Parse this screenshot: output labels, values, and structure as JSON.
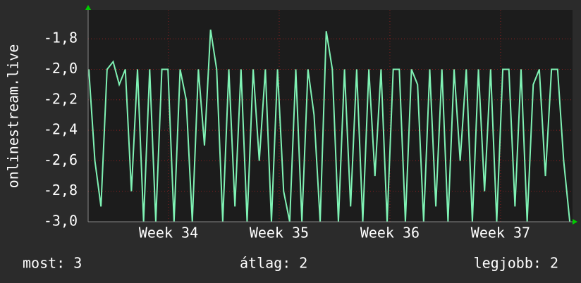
{
  "chart_data": {
    "type": "line",
    "ylabel": "onlinestream.live",
    "x": [
      33.28,
      33.335,
      33.39,
      33.445,
      33.5,
      33.555,
      33.61,
      33.665,
      33.72,
      33.775,
      33.83,
      33.885,
      33.94,
      33.995,
      34.05,
      34.105,
      34.16,
      34.215,
      34.27,
      34.325,
      34.38,
      34.435,
      34.49,
      34.545,
      34.6,
      34.655,
      34.71,
      34.765,
      34.82,
      34.875,
      34.93,
      34.985,
      35.04,
      35.095,
      35.15,
      35.205,
      35.26,
      35.315,
      35.37,
      35.425,
      35.48,
      35.535,
      35.59,
      35.645,
      35.7,
      35.755,
      35.81,
      35.865,
      35.92,
      35.975,
      36.03,
      36.085,
      36.14,
      36.195,
      36.25,
      36.305,
      36.36,
      36.415,
      36.47,
      36.525,
      36.58,
      36.635,
      36.69,
      36.745,
      36.8,
      36.855,
      36.91,
      36.965,
      37.02,
      37.075,
      37.13,
      37.185,
      37.24,
      37.295,
      37.35,
      37.405,
      37.46,
      37.515,
      37.57,
      37.625
    ],
    "values": [
      -2.0,
      -2.6,
      -2.9,
      -2.0,
      -1.95,
      -2.1,
      -2.0,
      -2.8,
      -2.0,
      -3.0,
      -2.0,
      -3.0,
      -2.0,
      -2.0,
      -3.0,
      -2.0,
      -2.2,
      -3.0,
      -2.0,
      -2.5,
      -1.74,
      -2.0,
      -3.0,
      -2.0,
      -2.9,
      -2.0,
      -3.0,
      -2.0,
      -2.6,
      -2.0,
      -3.0,
      -2.0,
      -2.8,
      -3.0,
      -2.0,
      -3.0,
      -2.0,
      -2.3,
      -3.0,
      -1.75,
      -2.0,
      -3.0,
      -2.0,
      -2.9,
      -2.0,
      -3.0,
      -2.0,
      -2.7,
      -2.0,
      -3.0,
      -2.0,
      -2.0,
      -3.0,
      -2.0,
      -2.1,
      -3.0,
      -2.0,
      -2.9,
      -2.0,
      -3.0,
      -2.0,
      -2.6,
      -2.0,
      -3.0,
      -2.0,
      -2.8,
      -2.0,
      -3.0,
      -2.0,
      -2.0,
      -2.9,
      -2.0,
      -3.0,
      -2.1,
      -2.0,
      -2.7,
      -2.0,
      -2.0,
      -2.6,
      -3.0
    ],
    "color": "#7ff2b4",
    "xlim": [
      33.274,
      37.65
    ],
    "xticks": [
      {
        "value": 34,
        "label": "Week 34"
      },
      {
        "value": 35,
        "label": "Week 35"
      },
      {
        "value": 36,
        "label": "Week 36"
      },
      {
        "value": 37,
        "label": "Week 37"
      }
    ],
    "ylim": [
      -3.0,
      -1.61
    ],
    "yticks": [
      {
        "value": -3.0,
        "label": "-3,0"
      },
      {
        "value": -2.8,
        "label": "-2,8"
      },
      {
        "value": -2.6,
        "label": "-2,6"
      },
      {
        "value": -2.4,
        "label": "-2,4"
      },
      {
        "value": -2.2,
        "label": "-2,2"
      },
      {
        "value": -2.0,
        "label": "-2,0"
      },
      {
        "value": -1.8,
        "label": "-1,8"
      }
    ],
    "grid": true,
    "stats": [
      "most: 3",
      "átlag: 2",
      "legjobb: 2"
    ]
  }
}
